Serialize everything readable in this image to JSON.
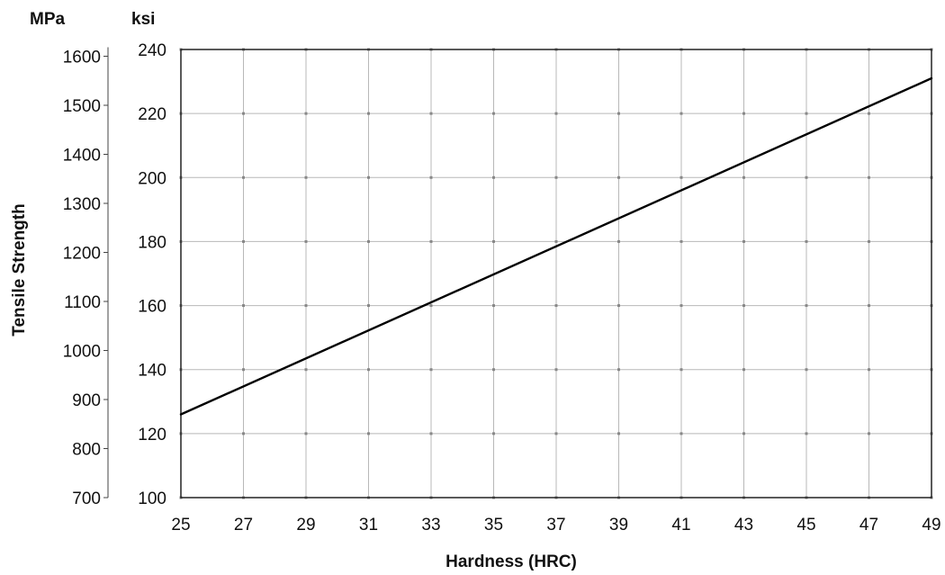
{
  "chart_data": {
    "type": "line",
    "title": "",
    "xlabel": "Hardness (HRC)",
    "ylabel": "Tensile Strength",
    "x_ticks": [
      "25",
      "27",
      "29",
      "31",
      "33",
      "35",
      "37",
      "39",
      "41",
      "43",
      "45",
      "47",
      "49"
    ],
    "xlim": [
      25,
      49
    ],
    "y_primary": {
      "unit": "ksi",
      "ylim": [
        100,
        240
      ],
      "ticks": [
        "100",
        "120",
        "140",
        "160",
        "180",
        "200",
        "220",
        "240"
      ]
    },
    "y_secondary": {
      "unit": "MPa",
      "ticks": [
        {
          "label": "700",
          "value": 700
        },
        {
          "label": "800",
          "value": 800
        },
        {
          "label": "900",
          "value": 900
        },
        {
          "label": "1000",
          "value": 1000
        },
        {
          "label": "1100",
          "value": 1100
        },
        {
          "label": "1200",
          "value": 1200
        },
        {
          "label": "1300",
          "value": 1300
        },
        {
          "label": "1400",
          "value": 1400
        },
        {
          "label": "1500",
          "value": 1500
        },
        {
          "label": "1600",
          "value": 1600
        }
      ]
    },
    "grid": true,
    "series": [
      {
        "x": [
          25,
          49
        ],
        "y": [
          126,
          231
        ]
      }
    ]
  }
}
